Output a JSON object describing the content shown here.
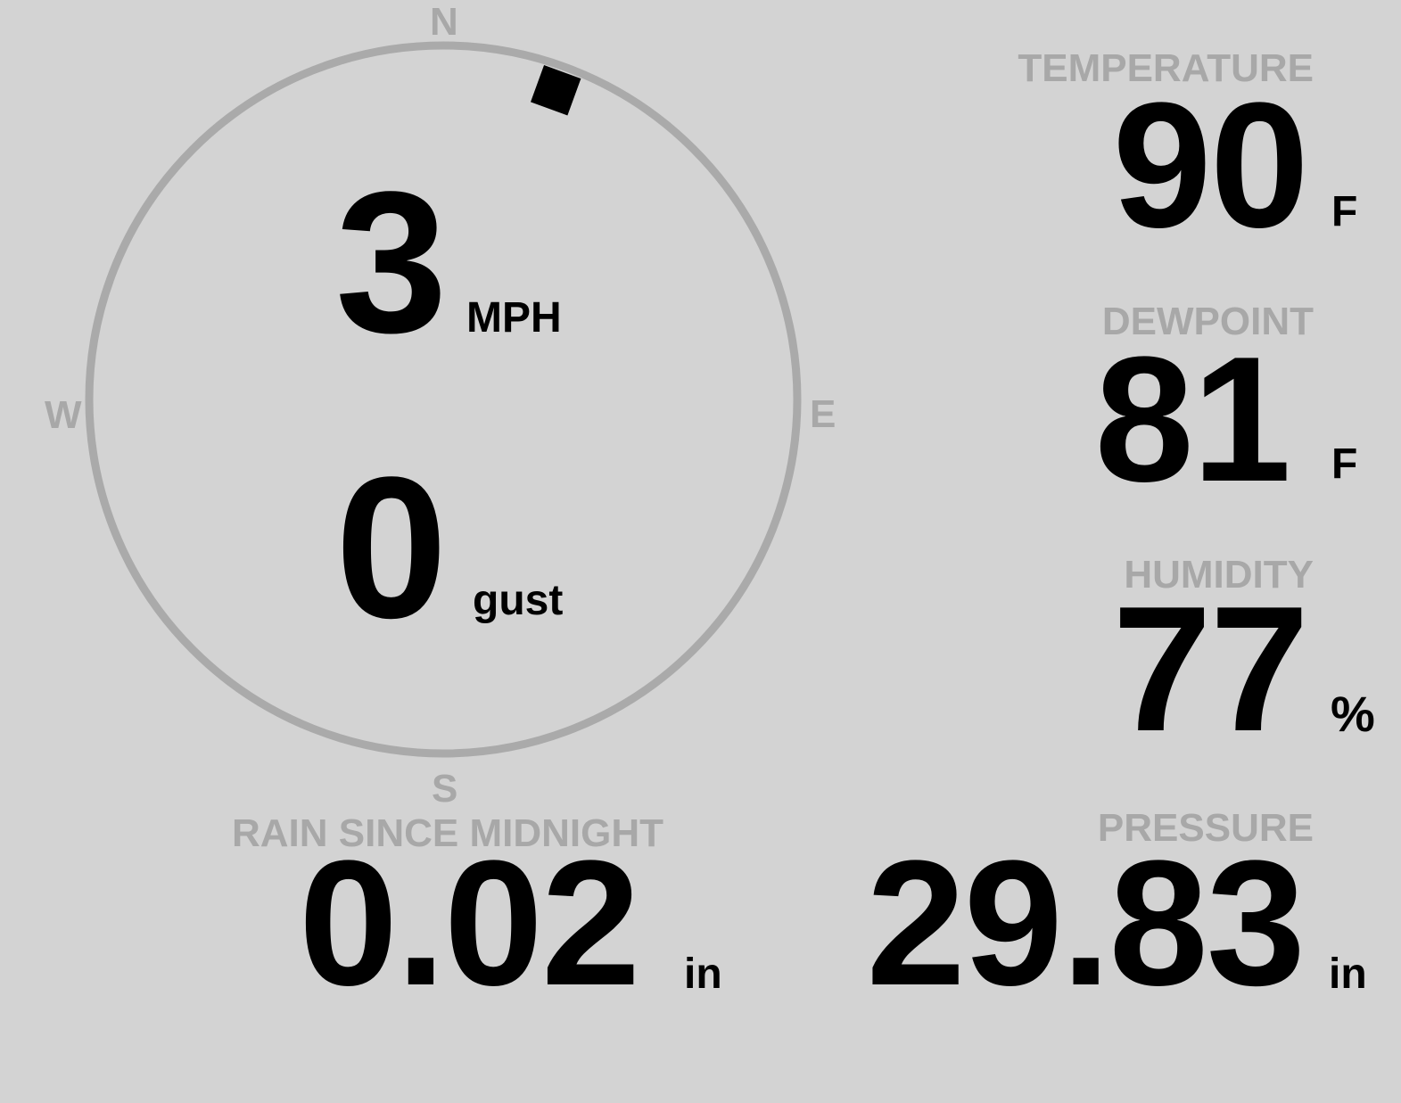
{
  "compass": {
    "north": "N",
    "south": "S",
    "east": "E",
    "west": "W",
    "wind_direction_deg": 20
  },
  "wind": {
    "speed": "3",
    "speed_unit": "MPH",
    "gust": "0",
    "gust_unit": "gust"
  },
  "temperature": {
    "label": "TEMPERATURE",
    "value": "90",
    "unit": "F"
  },
  "dewpoint": {
    "label": "DEWPOINT",
    "value": "81",
    "unit": "F"
  },
  "humidity": {
    "label": "HUMIDITY",
    "value": "77",
    "unit": "%"
  },
  "pressure": {
    "label": "PRESSURE",
    "value": "29.83",
    "unit": "in"
  },
  "rain": {
    "label": "RAIN SINCE MIDNIGHT",
    "value": "0.02",
    "unit": "in"
  },
  "colors": {
    "background": "#d3d3d3",
    "label": "#a8a8a8",
    "value": "#000000",
    "ring": "#aaaaaa"
  }
}
